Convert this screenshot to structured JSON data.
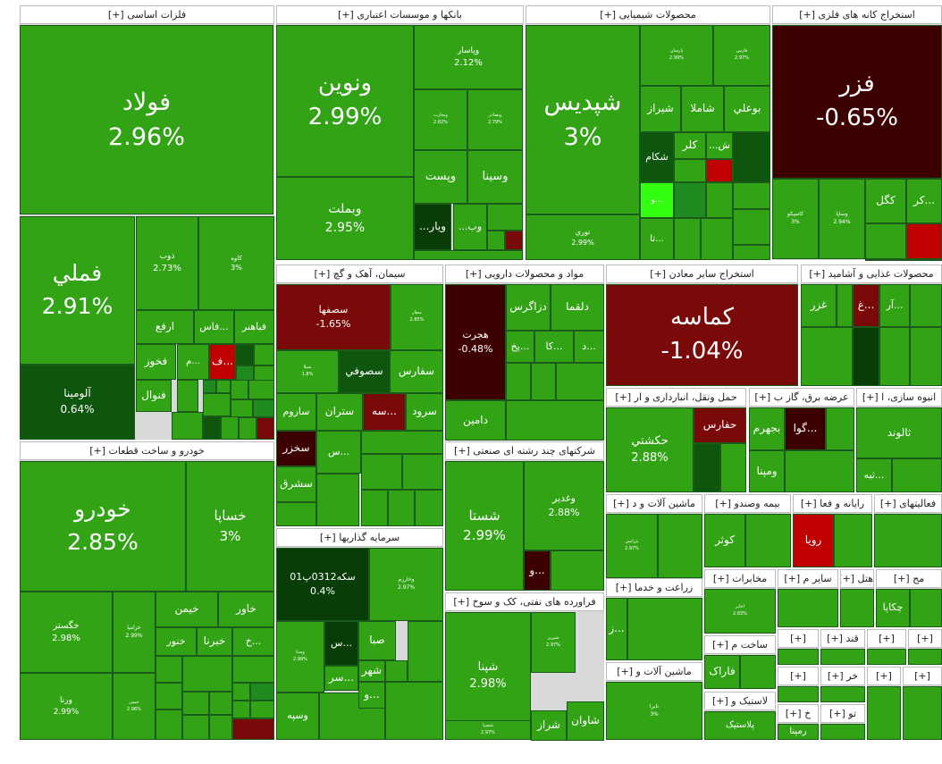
{
  "colors": {
    "up": "#33a316",
    "bright": "#33ff11",
    "mid": "#1f8a1f",
    "dark": "#0e560e",
    "darkest": "#083d08",
    "red": "#c00000",
    "maroon": "#7a0a0a",
    "deep": "#3d0000"
  },
  "chart_data": {
    "type": "treemap",
    "title": "",
    "sectors": [
      {
        "name": "فلزات اساسی [+]",
        "tiles": [
          [
            "فولاد",
            "2.96%"
          ],
          [
            "فملي",
            "2.91%"
          ],
          [
            "آلومينا",
            "0.64%"
          ],
          [
            "ذوب",
            "2.73%"
          ],
          [
            "کاوه",
            "3%"
          ],
          [
            "ارفع",
            ""
          ],
          [
            "فاس...",
            ""
          ],
          [
            "فباهنر",
            ""
          ],
          [
            "فخوز",
            ""
          ],
          [
            "ف...",
            ""
          ],
          [
            "م...",
            ""
          ],
          [
            "فنوال",
            ""
          ]
        ]
      },
      {
        "name": "بانکها و موسسات اعتباری [+]",
        "tiles": [
          [
            "ونوين",
            "2.99%"
          ],
          [
            "وبملت",
            "2.95%"
          ],
          [
            "وپاسار",
            "2.12%"
          ],
          [
            "وتجارت",
            "2.82%"
          ],
          [
            "وبصادر",
            "2.79%"
          ],
          [
            "وپست",
            ""
          ],
          [
            "وسينا",
            ""
          ],
          [
            "...ويار",
            ""
          ],
          [
            "...وب",
            ""
          ]
        ]
      },
      {
        "name": "محصولات شیمیایی [+]",
        "tiles": [
          [
            "شپديس",
            "3%"
          ],
          [
            "نوري",
            "2.99%"
          ],
          [
            "پارسان",
            "2.99%"
          ],
          [
            "فارس",
            "2.97%"
          ],
          [
            "شيراز",
            ""
          ],
          [
            "شاملا",
            ""
          ],
          [
            "بوعلي",
            ""
          ],
          [
            "شکام",
            ""
          ],
          [
            "کلر",
            ""
          ],
          [
            "...ش",
            ""
          ],
          [
            "و...",
            ""
          ],
          [
            "تا...",
            ""
          ]
        ]
      },
      {
        "name": "استخراج کانه های فلزی [+]",
        "tiles": [
          [
            "فزر",
            "-0.65%"
          ],
          [
            "کگل",
            ""
          ],
          [
            "کر...",
            ""
          ],
          [
            "کاسپکو",
            "3%"
          ],
          [
            "وساپا",
            "2.94%"
          ]
        ]
      },
      {
        "name": "خودرو و ساخت قطعات [+]",
        "tiles": [
          [
            "خودرو",
            "2.85%"
          ],
          [
            "خساپا",
            "3%"
          ],
          [
            "خگستر",
            "2.98%"
          ],
          [
            "ورنا",
            "2.99%"
          ],
          [
            "خزاميا",
            "2.99%"
          ],
          [
            "خيمن",
            "2.96%"
          ],
          [
            "خيمن",
            ""
          ],
          [
            "خاور",
            ""
          ],
          [
            "خنور",
            ""
          ],
          [
            "خبرنا",
            ""
          ],
          [
            "خ...",
            ""
          ]
        ]
      },
      {
        "name": "سیمان، آهک و گچ [+]",
        "tiles": [
          [
            "سصفها",
            "-1.65%"
          ],
          [
            "سفار",
            "2.85%"
          ],
          [
            "سيلا",
            "1.8%"
          ],
          [
            "سصوفي",
            ""
          ],
          [
            "سفارس",
            ""
          ],
          [
            "ساروم",
            ""
          ],
          [
            "ستران",
            ""
          ],
          [
            "سه...",
            ""
          ],
          [
            "سرود",
            ""
          ],
          [
            "سخزر",
            ""
          ],
          [
            "سشرق",
            ""
          ],
          [
            "س...",
            ""
          ]
        ]
      },
      {
        "name": "مواد و محصولات دارویی [+]",
        "tiles": [
          [
            "هجرت",
            "-0.48%"
          ],
          [
            "دزاگرس",
            ""
          ],
          [
            "دلقما",
            ""
          ],
          [
            "پخ...",
            ""
          ],
          [
            "کا...",
            ""
          ],
          [
            "د...",
            ""
          ],
          [
            "دامين",
            ""
          ]
        ]
      },
      {
        "name": "استخراج سایر معادن [+]",
        "tiles": [
          [
            "کماسه",
            "-1.04%"
          ]
        ]
      },
      {
        "name": "محصولات غذایی و آشامید [+]",
        "tiles": [
          [
            "غزر",
            ""
          ],
          [
            "غ...",
            ""
          ],
          [
            "آر...",
            ""
          ]
        ]
      },
      {
        "name": "حمل ونقل، انبارداری و ار [+]",
        "tiles": [
          [
            "حکشتي",
            "2.88%"
          ],
          [
            "حفارس",
            ""
          ]
        ]
      },
      {
        "name": "عرضه برق، گاز ب [+]",
        "tiles": [
          [
            "بجهرم",
            ""
          ],
          [
            "گوا...",
            ""
          ],
          [
            "ومپنا",
            ""
          ]
        ]
      },
      {
        "name": "انبوه سازی، ا [+]",
        "tiles": [
          [
            "ثالوند",
            ""
          ],
          [
            "ثبه...",
            ""
          ]
        ]
      },
      {
        "name": "شرکتهای چند رشته ای صنعتی [+]",
        "tiles": [
          [
            "شستا",
            "2.99%"
          ],
          [
            "وغدير",
            "2.88%"
          ],
          [
            "و...",
            ""
          ]
        ]
      },
      {
        "name": "سرمایه گذاریها [+]",
        "tiles": [
          [
            "سکه0312پ01",
            "0.4%"
          ],
          [
            "وخارزم",
            "2.97%"
          ],
          [
            "وسنا",
            "2.99%"
          ],
          [
            "س...",
            ""
          ],
          [
            "صبا",
            ""
          ],
          [
            "شهر",
            ""
          ],
          [
            "سر...",
            ""
          ],
          [
            "و...",
            ""
          ],
          [
            "وسپه",
            ""
          ]
        ]
      },
      {
        "name": "فراورده های نفتی، کک و سوخ [+]",
        "tiles": [
          [
            "شپنا",
            "2.98%"
          ],
          [
            "شبريز",
            "2.97%"
          ],
          [
            "شراز",
            ""
          ],
          [
            "شاوان",
            ""
          ],
          [
            "شسپا",
            "2.97%"
          ]
        ]
      },
      {
        "name": "ماشین آلات و د [+]",
        "tiles": [
          [
            "بترانس",
            "2.97%"
          ]
        ]
      },
      {
        "name": "بیمه وصندو [+]",
        "tiles": [
          [
            "کوثر",
            ""
          ]
        ]
      },
      {
        "name": "رایانه و فعا [+]",
        "tiles": [
          [
            "رويا",
            ""
          ]
        ]
      },
      {
        "name": "فعالیتهای [+]",
        "tiles": []
      },
      {
        "name": "زراعت و خدما [+]",
        "tiles": [
          [
            "ز...",
            ""
          ]
        ]
      },
      {
        "name": "مخابرات [+]",
        "tiles": [
          [
            "اخابر",
            "2.83%"
          ]
        ]
      },
      {
        "name": "سایر م [+]",
        "tiles": []
      },
      {
        "name": "هتل [+]",
        "tiles": []
      },
      {
        "name": "مح [+]",
        "tiles": [
          [
            "چکاپا",
            ""
          ]
        ]
      },
      {
        "name": "ماشین آلات و [+]",
        "tiles": [
          [
            "تايرا",
            "3%"
          ]
        ]
      },
      {
        "name": "ساخت م [+]",
        "tiles": [
          [
            "فاراک",
            ""
          ]
        ]
      },
      {
        "name": "لاستیک و [+]",
        "tiles": [
          [
            "پلاستيک",
            ""
          ]
        ]
      },
      {
        "name": "[+]",
        "tiles": []
      },
      {
        "name": "قند [+]",
        "tiles": []
      },
      {
        "name": "[+]",
        "tiles": []
      },
      {
        "name": "خر [+]",
        "tiles": []
      },
      {
        "name": "خ [+]",
        "tiles": [
          [
            "رمپنا",
            ""
          ]
        ]
      },
      {
        "name": "تو [+]",
        "tiles": []
      },
      {
        "name": "[+]",
        "tiles": []
      },
      {
        "name": "[+]",
        "tiles": []
      },
      {
        "name": "[+]",
        "tiles": []
      },
      {
        "name": "[+]",
        "tiles": []
      }
    ]
  }
}
